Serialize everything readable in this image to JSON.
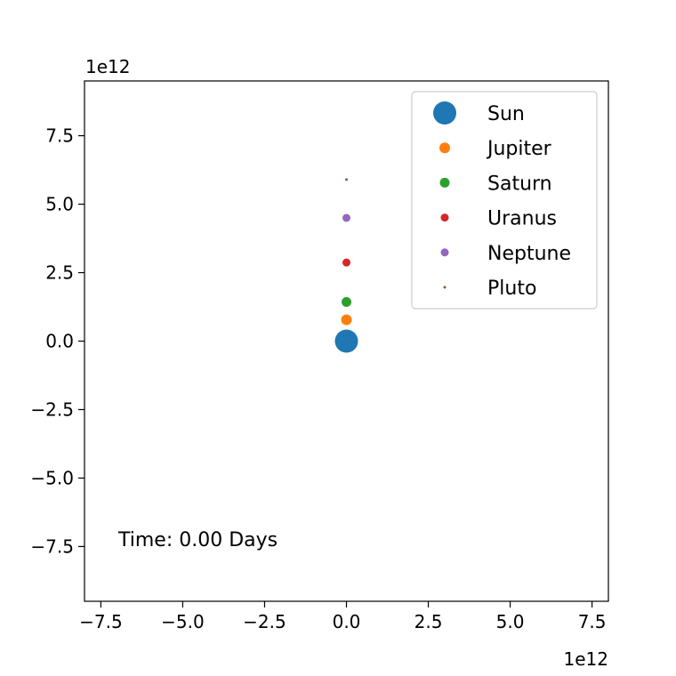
{
  "chart_data": {
    "type": "scatter",
    "title": "",
    "xlabel": "",
    "ylabel": "",
    "x_offset_label": "1e12",
    "y_offset_label": "1e12",
    "xlim": [
      -8.0,
      8.0
    ],
    "ylim": [
      -9.5,
      9.5
    ],
    "x_ticks": [
      -7.5,
      -5.0,
      -2.5,
      0.0,
      2.5,
      5.0,
      7.5
    ],
    "x_tick_labels": [
      "−7.5",
      "−5.0",
      "−2.5",
      "0.0",
      "2.5",
      "5.0",
      "7.5"
    ],
    "y_ticks": [
      -7.5,
      -5.0,
      -2.5,
      0.0,
      2.5,
      5.0,
      7.5
    ],
    "y_tick_labels": [
      "−7.5",
      "−5.0",
      "−2.5",
      "0.0",
      "2.5",
      "5.0",
      "7.5"
    ],
    "grid": false,
    "legend_position": "top-right",
    "annotation": "Time: 0.00 Days",
    "series": [
      {
        "name": "Sun",
        "color": "#1f77b4",
        "x": 0.0,
        "y": 0.0,
        "marker_size": 13
      },
      {
        "name": "Jupiter",
        "color": "#ff7f0e",
        "x": 0.0,
        "y": 0.78,
        "marker_size": 6
      },
      {
        "name": "Saturn",
        "color": "#2ca02c",
        "x": 0.0,
        "y": 1.43,
        "marker_size": 5.5
      },
      {
        "name": "Uranus",
        "color": "#d62728",
        "x": 0.0,
        "y": 2.87,
        "marker_size": 4.5
      },
      {
        "name": "Neptune",
        "color": "#9467bd",
        "x": 0.0,
        "y": 4.5,
        "marker_size": 4.5
      },
      {
        "name": "Pluto",
        "color": "#8c564b",
        "x": 0.0,
        "y": 5.9,
        "marker_size": 1.5
      }
    ]
  }
}
